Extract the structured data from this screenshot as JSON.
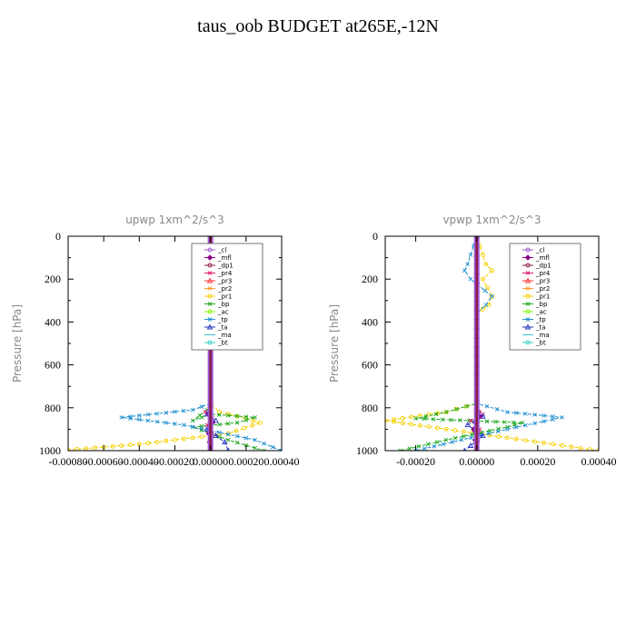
{
  "title": "taus_oob  BUDGET at265E,-12N",
  "legend_entries": [
    {
      "label": "_cl",
      "color": "#9b59d0",
      "marker": "circle"
    },
    {
      "label": "_mfl",
      "color": "#8b008b",
      "marker": "diamond"
    },
    {
      "label": "_dp1",
      "color": "#8b1a4a",
      "marker": "circle"
    },
    {
      "label": "_pr4",
      "color": "#e0206a",
      "marker": "x"
    },
    {
      "label": "_pr3",
      "color": "#ff3030",
      "marker": "triangle"
    },
    {
      "label": "_pr2",
      "color": "#ff9933",
      "marker": "x"
    },
    {
      "label": "_pr1",
      "color": "#f5d000",
      "marker": "circle"
    },
    {
      "label": "_bp",
      "color": "#1fa81f",
      "marker": "x"
    },
    {
      "label": "_ac",
      "color": "#7cfc00",
      "marker": "circle"
    },
    {
      "label": "_tp",
      "color": "#1f8fd0",
      "marker": "x"
    },
    {
      "label": "_ta",
      "color": "#2030c0",
      "marker": "triangle"
    },
    {
      "label": "_ma",
      "color": "#40c0d0",
      "marker": "dash"
    },
    {
      "label": "_bt",
      "color": "#30d0c0",
      "marker": "circle"
    }
  ],
  "chart_data": [
    {
      "type": "line",
      "title": "upwp   1xm^2/s^3",
      "ylabel": "Pressure [hPa]",
      "xlim": [
        -0.0008,
        0.0004
      ],
      "ylim": [
        1000,
        0
      ],
      "xticks": [
        "-0.00080",
        "-0.00060",
        "-0.00040",
        "-0.00020",
        "0.00000",
        "0.00020",
        "0.00040"
      ],
      "xtick_values": [
        -0.0008,
        -0.0006,
        -0.0004,
        -0.0002,
        0.0,
        0.0002,
        0.0004
      ],
      "yticks": [
        "0",
        "200",
        "400",
        "600",
        "800",
        "1000"
      ],
      "ytick_values": [
        0,
        200,
        400,
        600,
        800,
        1000
      ],
      "legend_position": "top-right",
      "series": [
        {
          "name": "_pr1",
          "color": "#f5d000",
          "x": [
            0,
            1e-05,
            1e-05,
            0,
            0,
            5e-05,
            0.0002,
            0.00028,
            0.0001,
            -0.0004,
            -0.00085
          ],
          "y": [
            0,
            140,
            220,
            300,
            780,
            820,
            850,
            870,
            920,
            970,
            1000
          ]
        },
        {
          "name": "_bp",
          "color": "#1fa81f",
          "x": [
            0,
            0,
            -2e-05,
            -0.0001,
            0,
            0.00025,
            0.00015,
            -0.0001,
            0.0001,
            0.0003
          ],
          "y": [
            0,
            780,
            810,
            860,
            830,
            845,
            870,
            890,
            950,
            1000
          ]
        },
        {
          "name": "_tp",
          "color": "#1f8fd0",
          "x": [
            0,
            -3e-05,
            -4e-05,
            -3e-05,
            0,
            0,
            -0.0001,
            -0.0005,
            -0.00015,
            0.00025,
            0.0004
          ],
          "y": [
            0,
            140,
            180,
            240,
            300,
            780,
            810,
            845,
            880,
            950,
            1000
          ]
        },
        {
          "name": "_pr4",
          "color": "#e0206a",
          "x": [
            0,
            0,
            -3e-05,
            1e-05,
            -2e-05,
            1e-05,
            0
          ],
          "y": [
            0,
            780,
            820,
            850,
            880,
            920,
            1000
          ]
        },
        {
          "name": "_ta",
          "color": "#2030c0",
          "x": [
            0,
            0,
            -2e-05,
            3e-05,
            -2e-05,
            8e-05,
            0.0001
          ],
          "y": [
            0,
            800,
            830,
            860,
            900,
            960,
            1000
          ]
        },
        {
          "name": "_mfl",
          "color": "#8b008b",
          "x": [
            0,
            0,
            -1e-05,
            1e-05,
            -1e-05,
            0
          ],
          "y": [
            0,
            780,
            830,
            870,
            920,
            1000
          ]
        }
      ]
    },
    {
      "type": "line",
      "title": "vpwp   1xm^2/s^3",
      "ylabel": "Pressure [hPa]",
      "xlim": [
        -0.0003,
        0.0004
      ],
      "ylim": [
        1000,
        0
      ],
      "xticks": [
        "-0.00020",
        "0.00000",
        "0.00020",
        "0.00040"
      ],
      "xtick_values": [
        -0.0002,
        0.0,
        0.0002,
        0.0004
      ],
      "yticks": [
        "0",
        "200",
        "400",
        "600",
        "800",
        "1000"
      ],
      "ytick_values": [
        0,
        200,
        400,
        600,
        800,
        1000
      ],
      "legend_position": "top-right",
      "series": [
        {
          "name": "_pr1",
          "color": "#f5d000",
          "x": [
            0,
            3e-05,
            5e-05,
            2e-05,
            5e-05,
            4e-05,
            0,
            0,
            -0.0001,
            -0.0003,
            0.0001,
            0.0004
          ],
          "y": [
            0,
            130,
            160,
            200,
            280,
            320,
            360,
            780,
            820,
            860,
            940,
            1000
          ]
        },
        {
          "name": "_bp",
          "color": "#1fa81f",
          "x": [
            0,
            0,
            -0.0001,
            -0.0002,
            0.00015,
            0.0001,
            -0.0001,
            -0.00025
          ],
          "y": [
            0,
            780,
            820,
            850,
            870,
            890,
            950,
            1000
          ]
        },
        {
          "name": "_tp",
          "color": "#1f8fd0",
          "x": [
            0,
            -3e-05,
            -4e-05,
            -2e-05,
            5e-05,
            3e-05,
            0,
            0,
            0.0001,
            0.00028,
            0.0001,
            -0.0002
          ],
          "y": [
            0,
            130,
            160,
            200,
            280,
            320,
            360,
            780,
            820,
            845,
            900,
            1000
          ]
        },
        {
          "name": "_pr4",
          "color": "#e0206a",
          "x": [
            0,
            0,
            2e-05,
            -2e-05,
            1e-05,
            0
          ],
          "y": [
            0,
            790,
            830,
            860,
            900,
            1000
          ]
        },
        {
          "name": "_ta",
          "color": "#2030c0",
          "x": [
            0,
            0,
            2e-05,
            -3e-05,
            2e-05,
            -4e-05
          ],
          "y": [
            0,
            800,
            840,
            880,
            930,
            1000
          ]
        },
        {
          "name": "_mfl",
          "color": "#8b008b",
          "x": [
            0,
            0,
            1e-05,
            -1e-05,
            0
          ],
          "y": [
            0,
            780,
            840,
            900,
            1000
          ]
        }
      ]
    }
  ]
}
